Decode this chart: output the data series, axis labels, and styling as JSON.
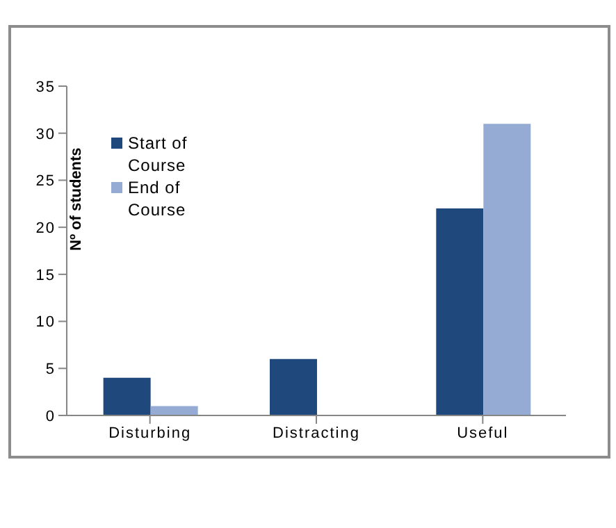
{
  "chart_data": {
    "type": "bar",
    "ylabel": "Nº of students",
    "categories": [
      "Disturbing",
      "Distracting",
      "Useful"
    ],
    "series": [
      {
        "name": "Start of Course",
        "color": "#1f497d",
        "values": [
          4,
          6,
          22
        ]
      },
      {
        "name": "End of Course",
        "color": "#95abd3",
        "values": [
          1,
          0,
          31
        ]
      }
    ],
    "ylim": [
      0,
      35
    ],
    "yticks": [
      0,
      5,
      10,
      15,
      20,
      25,
      30,
      35
    ],
    "grid": false,
    "legend": "top left"
  }
}
